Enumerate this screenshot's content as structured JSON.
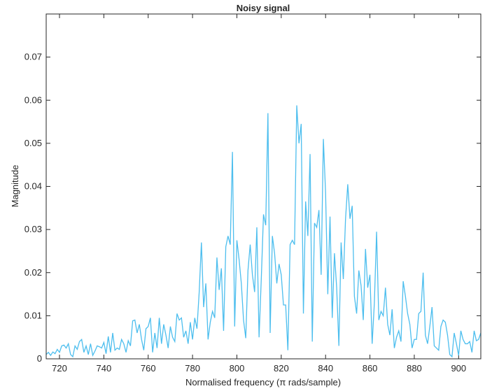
{
  "chart_data": {
    "type": "line",
    "title": "Noisy signal",
    "xlabel": "Normalised  frequency  (π  rads/sample)",
    "ylabel": "Magnitude",
    "xlim": [
      714,
      910
    ],
    "ylim": [
      0,
      0.08
    ],
    "xticks": [
      720,
      740,
      760,
      780,
      800,
      820,
      840,
      860,
      880,
      900
    ],
    "yticks": [
      0,
      0.01,
      0.02,
      0.03,
      0.04,
      0.05,
      0.06,
      0.07
    ],
    "x": [
      714,
      715,
      716,
      717,
      718,
      719,
      720,
      721,
      722,
      723,
      724,
      725,
      726,
      727,
      728,
      729,
      730,
      731,
      732,
      733,
      734,
      735,
      736,
      737,
      738,
      739,
      740,
      741,
      742,
      743,
      744,
      745,
      746,
      747,
      748,
      749,
      750,
      751,
      752,
      753,
      754,
      755,
      756,
      757,
      758,
      759,
      760,
      761,
      762,
      763,
      764,
      765,
      766,
      767,
      768,
      769,
      770,
      771,
      772,
      773,
      774,
      775,
      776,
      777,
      778,
      779,
      780,
      781,
      782,
      783,
      784,
      785,
      786,
      787,
      788,
      789,
      790,
      791,
      792,
      793,
      794,
      795,
      796,
      797,
      798,
      799,
      800,
      801,
      802,
      803,
      804,
      805,
      806,
      807,
      808,
      809,
      810,
      811,
      812,
      813,
      814,
      815,
      816,
      817,
      818,
      819,
      820,
      821,
      822,
      823,
      824,
      825,
      826,
      827,
      828,
      829,
      830,
      831,
      832,
      833,
      834,
      835,
      836,
      837,
      838,
      839,
      840,
      841,
      842,
      843,
      844,
      845,
      846,
      847,
      848,
      849,
      850,
      851,
      852,
      853,
      854,
      855,
      856,
      857,
      858,
      859,
      860,
      861,
      862,
      863,
      864,
      865,
      866,
      867,
      868,
      869,
      870,
      871,
      872,
      873,
      874,
      875,
      876,
      877,
      878,
      879,
      880,
      881,
      882,
      883,
      884,
      885,
      886,
      887,
      888,
      889,
      890,
      891,
      892,
      893,
      894,
      895,
      896,
      897,
      898,
      899,
      900,
      901,
      902,
      903,
      904,
      905,
      906,
      907,
      908,
      909,
      910
    ],
    "series": [
      {
        "name": "Noisy signal",
        "color": "#4dbeee",
        "values": [
          0.001,
          0.0015,
          0.0008,
          0.0016,
          0.0012,
          0.0022,
          0.0015,
          0.003,
          0.0032,
          0.0025,
          0.0035,
          0.001,
          0.0005,
          0.003,
          0.0022,
          0.004,
          0.0045,
          0.0015,
          0.003,
          0.001,
          0.0035,
          0.0008,
          0.0018,
          0.003,
          0.0028,
          0.0025,
          0.0038,
          0.0012,
          0.0052,
          0.0015,
          0.006,
          0.002,
          0.0025,
          0.0022,
          0.0045,
          0.0035,
          0.0015,
          0.0042,
          0.003,
          0.0088,
          0.009,
          0.006,
          0.008,
          0.0045,
          0.002,
          0.007,
          0.0075,
          0.0095,
          0.0015,
          0.006,
          0.0025,
          0.0095,
          0.0035,
          0.008,
          0.0055,
          0.0025,
          0.0075,
          0.005,
          0.004,
          0.0105,
          0.009,
          0.0095,
          0.005,
          0.0065,
          0.0035,
          0.0085,
          0.0045,
          0.0095,
          0.007,
          0.0155,
          0.027,
          0.012,
          0.0175,
          0.0045,
          0.0085,
          0.011,
          0.0095,
          0.0235,
          0.016,
          0.021,
          0.0065,
          0.026,
          0.0285,
          0.0265,
          0.048,
          0.0075,
          0.0275,
          0.023,
          0.0175,
          0.009,
          0.0048,
          0.0205,
          0.0265,
          0.0195,
          0.0155,
          0.0305,
          0.005,
          0.0185,
          0.0335,
          0.031,
          0.057,
          0.006,
          0.0285,
          0.0245,
          0.0175,
          0.022,
          0.0195,
          0.0125,
          0.0125,
          0.002,
          0.0265,
          0.0275,
          0.0265,
          0.0588,
          0.05,
          0.0545,
          0.0105,
          0.0365,
          0.0285,
          0.0475,
          0.004,
          0.0315,
          0.0305,
          0.0345,
          0.0195,
          0.051,
          0.0385,
          0.015,
          0.033,
          0.0095,
          0.0245,
          0.0165,
          0.003,
          0.027,
          0.0185,
          0.0325,
          0.0405,
          0.0325,
          0.0355,
          0.0145,
          0.0105,
          0.0205,
          0.017,
          0.009,
          0.0255,
          0.0165,
          0.0195,
          0.0035,
          0.013,
          0.0295,
          0.009,
          0.011,
          0.01,
          0.0165,
          0.008,
          0.0055,
          0.0115,
          0.0025,
          0.005,
          0.0065,
          0.004,
          0.018,
          0.0145,
          0.0105,
          0.008,
          0.0025,
          0.0045,
          0.0045,
          0.0105,
          0.011,
          0.02,
          0.0055,
          0.0035,
          0.0075,
          0.012,
          0.003,
          0.0025,
          0.002,
          0.0075,
          0.009,
          0.0085,
          0.0055,
          0.001,
          0.0005,
          0.006,
          0.0035,
          0.0008,
          0.0065,
          0.0045,
          0.0035,
          0.0035,
          0.004,
          0.0015,
          0.0065,
          0.0042,
          0.0045,
          0.006
        ]
      }
    ]
  }
}
